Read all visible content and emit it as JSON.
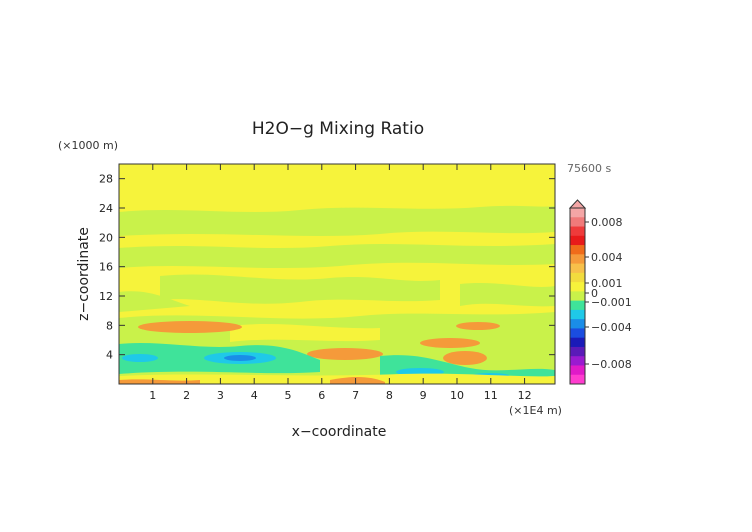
{
  "chart_data": {
    "type": "heatmap",
    "title": "H2O−g Mixing Ratio",
    "xlabel": "x−coordinate",
    "ylabel": "z−coordinate",
    "x_unit_label": "(×1E4 m)",
    "y_unit_label": "(×1000 m)",
    "time_label": "75600 s",
    "xlim": [
      0,
      12.9
    ],
    "ylim": [
      0,
      30
    ],
    "x_ticks": [
      "1",
      "2",
      "3",
      "4",
      "5",
      "6",
      "7",
      "8",
      "9",
      "10",
      "11",
      "12"
    ],
    "x_tick_values": [
      1,
      2,
      3,
      4,
      5,
      6,
      7,
      8,
      9,
      10,
      11,
      12
    ],
    "y_ticks": [
      "4",
      "8",
      "12",
      "16",
      "20",
      "24",
      "28"
    ],
    "y_tick_values": [
      4,
      8,
      12,
      16,
      20,
      24,
      28
    ],
    "colorbar": {
      "levels": [
        0.008,
        0.004,
        0.001,
        0,
        -0.001,
        -0.004,
        -0.008
      ],
      "labels": [
        "0.008",
        "0.004",
        "0.001",
        "0",
        "−0.001",
        "−0.004",
        "−0.008"
      ],
      "colors": [
        "#f4a6a6",
        "#f07a7a",
        "#ee3b3b",
        "#e81a1a",
        "#f06b1a",
        "#f59a3a",
        "#f7c04a",
        "#f2dc3e",
        "#f6f33b",
        "#c9f24a",
        "#3fe39a",
        "#1fc9e8",
        "#1a8de8",
        "#1a4de0",
        "#1a1ab8",
        "#5a1ab8",
        "#9a1ad0",
        "#e01ac8",
        "#ff3ccf"
      ]
    },
    "field_colors": {
      "positive_large": "#f59a3a",
      "positive_small": "#f6f33b",
      "near_zero": "#c9f24a",
      "negative_small": "#3fe39a",
      "negative_medium": "#1fc9e8",
      "negative_large": "#1a8de8"
    }
  }
}
